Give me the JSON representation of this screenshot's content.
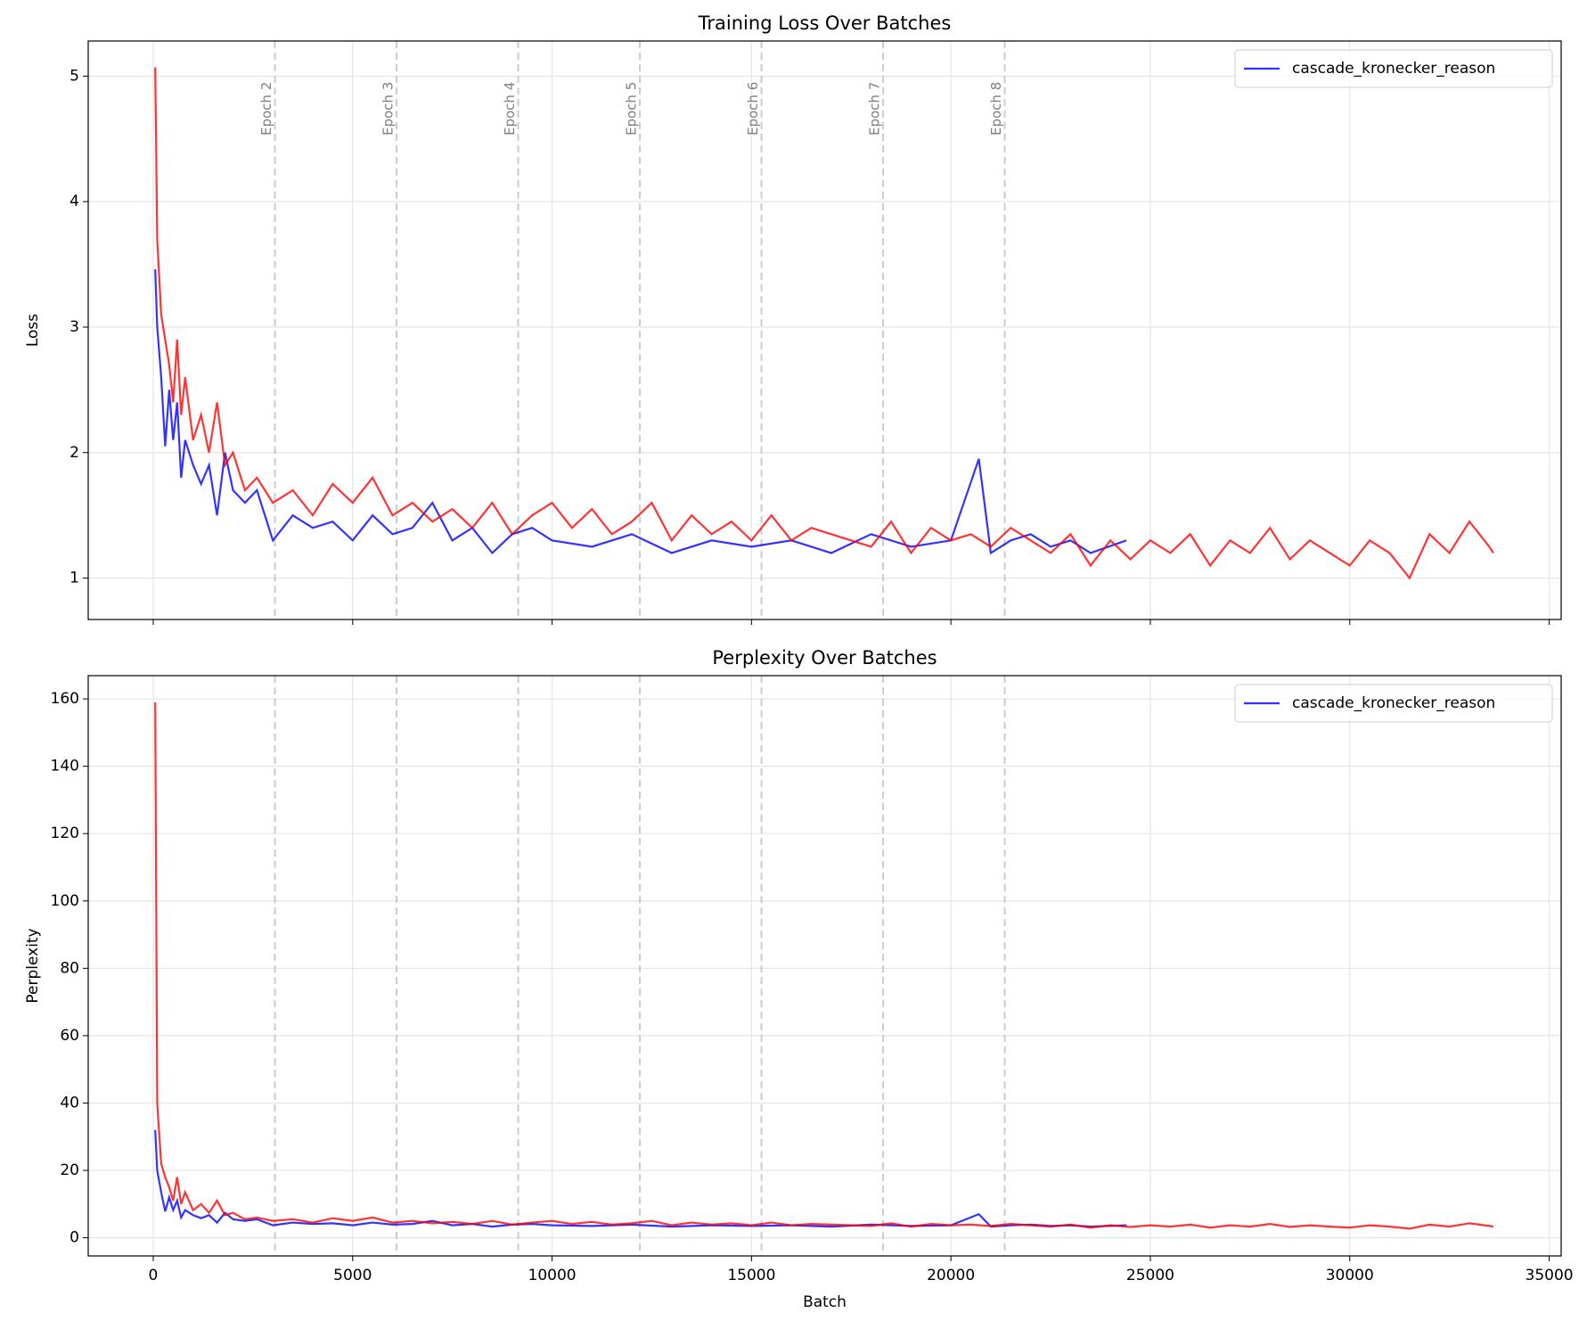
{
  "chart_data": [
    {
      "type": "line",
      "title": "Training Loss Over Batches",
      "ylabel": "Loss",
      "xlim": [
        -1630,
        35300
      ],
      "ylim": [
        0.67,
        5.28
      ],
      "xticks": [
        0,
        5000,
        10000,
        15000,
        20000,
        25000,
        30000,
        35000
      ],
      "xticklabels": false,
      "yticks": [
        1,
        2,
        3,
        4,
        5
      ],
      "grid": true,
      "legend": "upper right",
      "vlines": [
        3050,
        6100,
        9150,
        12200,
        15250,
        18300,
        21350
      ],
      "vline_labels": [
        "Epoch 2",
        "Epoch 3",
        "Epoch 4",
        "Epoch 5",
        "Epoch 6",
        "Epoch 7",
        "Epoch 8"
      ],
      "series": [
        {
          "name": "cascade_kronecker_reason",
          "color": "#0000ff",
          "x": [
            50,
            100,
            200,
            300,
            400,
            500,
            600,
            700,
            800,
            1000,
            1200,
            1400,
            1600,
            1800,
            2000,
            2300,
            2600,
            3000,
            3500,
            4000,
            4500,
            5000,
            5500,
            6000,
            6500,
            7000,
            7500,
            8000,
            8500,
            9000,
            9500,
            10000,
            11000,
            12000,
            13000,
            14000,
            15000,
            16000,
            17000,
            18000,
            19000,
            20000,
            20700,
            21000,
            21500,
            22000,
            22500,
            23000,
            23500,
            24400
          ],
          "values": [
            3.46,
            3.0,
            2.6,
            2.05,
            2.5,
            2.1,
            2.4,
            1.8,
            2.1,
            1.9,
            1.75,
            1.9,
            1.5,
            2.0,
            1.7,
            1.6,
            1.7,
            1.3,
            1.5,
            1.4,
            1.45,
            1.3,
            1.5,
            1.35,
            1.4,
            1.6,
            1.3,
            1.4,
            1.2,
            1.35,
            1.4,
            1.3,
            1.25,
            1.35,
            1.2,
            1.3,
            1.25,
            1.3,
            1.2,
            1.35,
            1.25,
            1.3,
            1.95,
            1.2,
            1.3,
            1.35,
            1.25,
            1.3,
            1.2,
            1.3
          ]
        },
        {
          "color": "#ff0000",
          "x": [
            50,
            100,
            200,
            300,
            400,
            500,
            600,
            700,
            800,
            1000,
            1200,
            1400,
            1600,
            1800,
            2000,
            2300,
            2600,
            3000,
            3500,
            4000,
            4500,
            5000,
            5500,
            6000,
            6500,
            7000,
            7500,
            8000,
            8500,
            9000,
            9500,
            10000,
            10500,
            11000,
            11500,
            12000,
            12500,
            13000,
            13500,
            14000,
            14500,
            15000,
            15500,
            16000,
            16500,
            17000,
            17500,
            18000,
            18500,
            19000,
            19500,
            20000,
            20500,
            21000,
            21500,
            22000,
            22500,
            23000,
            23500,
            24000,
            24500,
            25000,
            25500,
            26000,
            26500,
            27000,
            27500,
            28000,
            28500,
            29000,
            29500,
            30000,
            30500,
            31000,
            31500,
            32000,
            32500,
            33000,
            33500,
            33600
          ],
          "values": [
            5.07,
            3.7,
            3.1,
            2.9,
            2.7,
            2.4,
            2.9,
            2.3,
            2.6,
            2.1,
            2.3,
            2.0,
            2.4,
            1.9,
            2.0,
            1.7,
            1.8,
            1.6,
            1.7,
            1.5,
            1.75,
            1.6,
            1.8,
            1.5,
            1.6,
            1.45,
            1.55,
            1.4,
            1.6,
            1.35,
            1.5,
            1.6,
            1.4,
            1.55,
            1.35,
            1.45,
            1.6,
            1.3,
            1.5,
            1.35,
            1.45,
            1.3,
            1.5,
            1.3,
            1.4,
            1.35,
            1.3,
            1.25,
            1.45,
            1.2,
            1.4,
            1.3,
            1.35,
            1.25,
            1.4,
            1.3,
            1.2,
            1.35,
            1.1,
            1.3,
            1.15,
            1.3,
            1.2,
            1.35,
            1.1,
            1.3,
            1.2,
            1.4,
            1.15,
            1.3,
            1.2,
            1.1,
            1.3,
            1.2,
            1.0,
            1.35,
            1.2,
            1.45,
            1.25,
            1.2
          ]
        }
      ]
    },
    {
      "type": "line",
      "title": "Perplexity Over Batches",
      "ylabel": "Perplexity",
      "xlabel": "Batch",
      "xlim": [
        -1630,
        35300
      ],
      "ylim": [
        -5.4,
        166.9
      ],
      "xticks": [
        0,
        5000,
        10000,
        15000,
        20000,
        25000,
        30000,
        35000
      ],
      "yticks": [
        0,
        20,
        40,
        60,
        80,
        100,
        120,
        140,
        160
      ],
      "grid": true,
      "legend": "upper right",
      "vlines": [
        3050,
        6100,
        9150,
        12200,
        15250,
        18300,
        21350
      ],
      "series": [
        {
          "name": "cascade_kronecker_reason",
          "color": "#0000ff",
          "x": [
            50,
            100,
            200,
            300,
            400,
            500,
            600,
            700,
            800,
            1000,
            1200,
            1400,
            1600,
            1800,
            2000,
            2300,
            2600,
            3000,
            3500,
            4000,
            4500,
            5000,
            5500,
            6000,
            6500,
            7000,
            7500,
            8000,
            8500,
            9000,
            9500,
            10000,
            11000,
            12000,
            13000,
            14000,
            15000,
            16000,
            17000,
            18000,
            19000,
            20000,
            20700,
            21000,
            21500,
            22000,
            22500,
            23000,
            23500,
            24400
          ],
          "values": [
            32,
            20,
            13.5,
            7.8,
            12,
            8.2,
            11,
            6,
            8.2,
            6.7,
            5.8,
            6.7,
            4.5,
            7.4,
            5.5,
            5,
            5.5,
            3.7,
            4.5,
            4.1,
            4.3,
            3.7,
            4.5,
            3.9,
            4.1,
            5,
            3.7,
            4.1,
            3.3,
            3.9,
            4.1,
            3.7,
            3.5,
            3.9,
            3.3,
            3.7,
            3.5,
            3.7,
            3.3,
            3.9,
            3.5,
            3.7,
            7,
            3.3,
            3.7,
            3.9,
            3.5,
            3.7,
            3.3,
            3.7
          ]
        },
        {
          "color": "#ff0000",
          "x": [
            50,
            100,
            200,
            300,
            400,
            500,
            600,
            700,
            800,
            1000,
            1200,
            1400,
            1600,
            1800,
            2000,
            2300,
            2600,
            3000,
            3500,
            4000,
            4500,
            5000,
            5500,
            6000,
            6500,
            7000,
            7500,
            8000,
            8500,
            9000,
            9500,
            10000,
            10500,
            11000,
            11500,
            12000,
            12500,
            13000,
            13500,
            14000,
            14500,
            15000,
            15500,
            16000,
            16500,
            17000,
            17500,
            18000,
            18500,
            19000,
            19500,
            20000,
            20500,
            21000,
            21500,
            22000,
            22500,
            23000,
            23500,
            24000,
            24500,
            25000,
            25500,
            26000,
            26500,
            27000,
            27500,
            28000,
            28500,
            29000,
            29500,
            30000,
            30500,
            31000,
            31500,
            32000,
            32500,
            33000,
            33500,
            33600
          ],
          "values": [
            159,
            40,
            22,
            18,
            15,
            11,
            18,
            10,
            13.5,
            8.2,
            10,
            7.4,
            11,
            6.7,
            7.4,
            5.5,
            6,
            5,
            5.5,
            4.5,
            5.8,
            5,
            6,
            4.5,
            5,
            4.3,
            4.7,
            4.1,
            5,
            3.9,
            4.5,
            5,
            4.1,
            4.7,
            3.9,
            4.3,
            5,
            3.7,
            4.5,
            3.9,
            4.3,
            3.7,
            4.5,
            3.7,
            4.1,
            3.9,
            3.7,
            3.5,
            4.3,
            3.3,
            4.1,
            3.7,
            3.9,
            3.5,
            4.1,
            3.7,
            3.3,
            3.9,
            3,
            3.7,
            3.2,
            3.7,
            3.3,
            3.9,
            3,
            3.7,
            3.3,
            4.1,
            3.2,
            3.7,
            3.3,
            3,
            3.7,
            3.3,
            2.7,
            3.9,
            3.3,
            4.3,
            3.5,
            3.3
          ]
        }
      ]
    }
  ]
}
